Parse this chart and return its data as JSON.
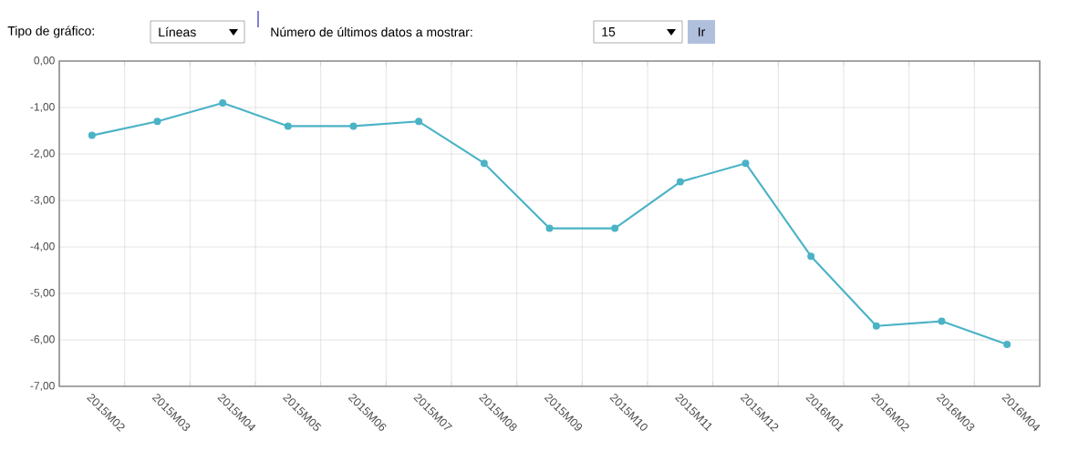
{
  "chart_data": {
    "type": "line",
    "categories": [
      "2015M02",
      "2015M03",
      "2015M04",
      "2015M05",
      "2015M06",
      "2015M07",
      "2015M08",
      "2015M09",
      "2015M10",
      "2015M11",
      "2015M12",
      "2016M01",
      "2016M02",
      "2016M03",
      "2016M04"
    ],
    "values": [
      -1.6,
      -1.3,
      -0.9,
      -1.4,
      -1.4,
      -1.3,
      -2.2,
      -3.6,
      -3.6,
      -2.6,
      -2.2,
      -4.2,
      -5.7,
      -5.6,
      -6.1
    ],
    "color": "#4bb3c6",
    "ylim": [
      -7,
      0
    ],
    "yticks": [
      {
        "value": 0,
        "label": "0,00"
      },
      {
        "value": -1,
        "label": "-1,00"
      },
      {
        "value": -2,
        "label": "-2,00"
      },
      {
        "value": -3,
        "label": "-3,00"
      },
      {
        "value": -4,
        "label": "-4,00"
      },
      {
        "value": -5,
        "label": "-5,00"
      },
      {
        "value": -6,
        "label": "-6,00"
      },
      {
        "value": -7,
        "label": "-7,00"
      }
    ],
    "grid": true,
    "marker": "circle",
    "annotations": [
      "Tipo de gráfico:",
      "Líneas",
      "Número de últimos datos a mostrar:",
      "15",
      "Ir"
    ]
  }
}
